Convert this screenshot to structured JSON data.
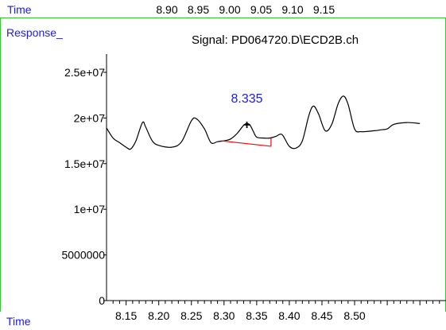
{
  "top_axis": {
    "label": "Time",
    "ticks": [
      "8.90",
      "8.95",
      "9.00",
      "9.05",
      "9.10",
      "9.15"
    ]
  },
  "y_label": "Response_",
  "bottom_label": "Time",
  "colors": {
    "divider": "#33cc33",
    "label_blue": "#1a1aff",
    "trace": "#000000",
    "baseline": "#ff0000",
    "peak_label": "#1a1aff"
  },
  "chart_data": {
    "type": "line",
    "title": "Signal: PD064720.D\\ECD2B.ch",
    "xlabel": "Time",
    "ylabel": "Response_",
    "xlim": [
      8.12,
      8.64
    ],
    "ylim": [
      0,
      27000000
    ],
    "x_ticks": [
      "8.15",
      "8.20",
      "8.25",
      "8.30",
      "8.35",
      "8.40",
      "8.45",
      "8.50"
    ],
    "y_ticks": [
      "0",
      "5000000",
      "1e+07",
      "1.5e+07",
      "2e+07",
      "2.5e+07"
    ],
    "y_tick_values": [
      0,
      5000000,
      10000000,
      15000000,
      20000000,
      25000000
    ],
    "series": [
      {
        "x": [
          8.12,
          8.13,
          8.14,
          8.15,
          8.157,
          8.165,
          8.175,
          8.18,
          8.19,
          8.2,
          8.22,
          8.235,
          8.25,
          8.258,
          8.27,
          8.28,
          8.29,
          8.3,
          8.31,
          8.32,
          8.33,
          8.335,
          8.34,
          8.345,
          8.35,
          8.36,
          8.37,
          8.38,
          8.385,
          8.39,
          8.4,
          8.41,
          8.42,
          8.43,
          8.437,
          8.445,
          8.455,
          8.465,
          8.475,
          8.483,
          8.49,
          8.5,
          8.51,
          8.53,
          8.54,
          8.55,
          8.56,
          8.58,
          8.6
        ],
        "y": [
          18900000,
          17800000,
          17300000,
          16800000,
          16600000,
          17500000,
          19500000,
          19000000,
          17500000,
          17000000,
          16800000,
          17400000,
          19700000,
          19900000,
          18800000,
          17300000,
          17400000,
          17500000,
          17700000,
          18300000,
          19200000,
          19400000,
          19200000,
          18500000,
          17900000,
          17800000,
          17800000,
          18000000,
          18200000,
          18100000,
          16900000,
          16700000,
          17500000,
          20300000,
          21300000,
          20400000,
          18600000,
          19300000,
          21600000,
          22400000,
          21500000,
          18800000,
          18500000,
          18600000,
          18700000,
          18800000,
          19300000,
          19500000,
          19400000
        ]
      }
    ],
    "baseline": {
      "x": [
        8.295,
        8.372
      ],
      "y": [
        17500000,
        16900000
      ]
    },
    "annotations": [
      {
        "text": "8.335",
        "x": 8.335,
        "y": 21700000
      },
      {
        "text": "+",
        "x": 8.335,
        "y": 18800000
      }
    ]
  }
}
